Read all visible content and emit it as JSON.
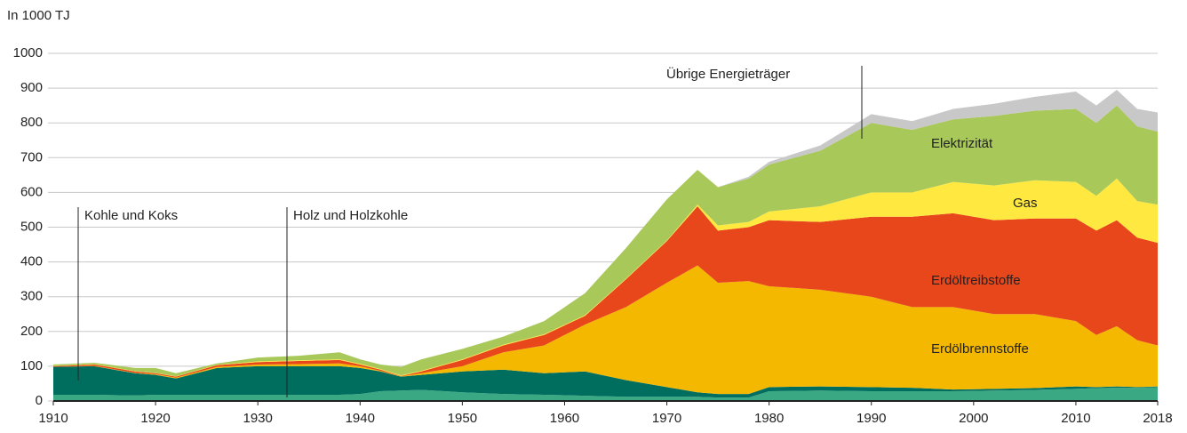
{
  "chart_data": {
    "type": "area",
    "y_label": "In 1000 TJ",
    "x": [
      1910,
      1914,
      1918,
      1920,
      1922,
      1926,
      1930,
      1934,
      1938,
      1940,
      1942,
      1944,
      1946,
      1950,
      1954,
      1958,
      1962,
      1966,
      1970,
      1973,
      1975,
      1978,
      1980,
      1985,
      1990,
      1994,
      1998,
      2002,
      2006,
      2010,
      2012,
      2014,
      2016,
      2018
    ],
    "series": [
      {
        "name": "Holz und Holzkohle",
        "color": "#3aa882",
        "values": [
          18,
          18,
          16,
          18,
          18,
          18,
          18,
          18,
          18,
          20,
          28,
          30,
          32,
          25,
          20,
          18,
          15,
          12,
          12,
          12,
          10,
          10,
          28,
          30,
          28,
          28,
          28,
          30,
          32,
          35,
          37,
          38,
          38,
          40
        ]
      },
      {
        "name": "Kohle und Koks",
        "color": "#006e5f",
        "values": [
          80,
          82,
          64,
          57,
          47,
          77,
          82,
          82,
          82,
          75,
          57,
          40,
          43,
          60,
          70,
          62,
          70,
          48,
          28,
          13,
          10,
          10,
          12,
          12,
          12,
          10,
          5,
          5,
          5,
          7,
          3,
          4,
          2,
          2
        ]
      },
      {
        "name": "Erdölbrennstoffe",
        "color": "#f5b800",
        "values": [
          0,
          1,
          1,
          2,
          2,
          3,
          5,
          6,
          8,
          5,
          2,
          1,
          5,
          15,
          50,
          80,
          135,
          210,
          300,
          365,
          320,
          325,
          290,
          278,
          260,
          232,
          237,
          215,
          213,
          188,
          150,
          173,
          135,
          118
        ]
      },
      {
        "name": "Erdöltreibstoffe",
        "color": "#e8461b",
        "values": [
          2,
          4,
          4,
          3,
          3,
          5,
          7,
          9,
          10,
          5,
          3,
          1,
          5,
          18,
          20,
          30,
          25,
          80,
          120,
          170,
          150,
          155,
          190,
          195,
          230,
          260,
          270,
          270,
          275,
          295,
          300,
          305,
          295,
          295
        ]
      },
      {
        "name": "Gas",
        "color": "#ffe840",
        "values": [
          1,
          1,
          1,
          1,
          1,
          1,
          2,
          2,
          2,
          2,
          2,
          2,
          2,
          2,
          2,
          2,
          2,
          2,
          2,
          5,
          15,
          15,
          25,
          45,
          70,
          70,
          90,
          100,
          110,
          105,
          100,
          120,
          105,
          110
        ]
      },
      {
        "name": "Elektrizität",
        "color": "#a8c85a",
        "values": [
          4,
          4,
          9,
          14,
          9,
          4,
          11,
          13,
          20,
          13,
          13,
          24,
          33,
          30,
          23,
          38,
          63,
          88,
          118,
          100,
          110,
          125,
          135,
          160,
          200,
          180,
          180,
          200,
          200,
          210,
          210,
          210,
          215,
          210
        ]
      },
      {
        "name": "Übrige Energieträger",
        "color": "#c8c8c8",
        "values": [
          0,
          0,
          0,
          0,
          0,
          0,
          0,
          0,
          0,
          0,
          0,
          0,
          0,
          0,
          0,
          0,
          0,
          0,
          0,
          0,
          0,
          5,
          8,
          15,
          25,
          25,
          30,
          35,
          40,
          50,
          50,
          45,
          50,
          55
        ]
      }
    ],
    "xlim": [
      1910,
      2018
    ],
    "xticks": [
      1910,
      1920,
      1930,
      1940,
      1950,
      1960,
      1970,
      1980,
      1990,
      2000,
      2010,
      2018
    ],
    "ylim": [
      0,
      1000
    ],
    "yticks": [
      0,
      100,
      200,
      300,
      400,
      500,
      600,
      700,
      800,
      900,
      1000
    ],
    "grid": true
  }
}
